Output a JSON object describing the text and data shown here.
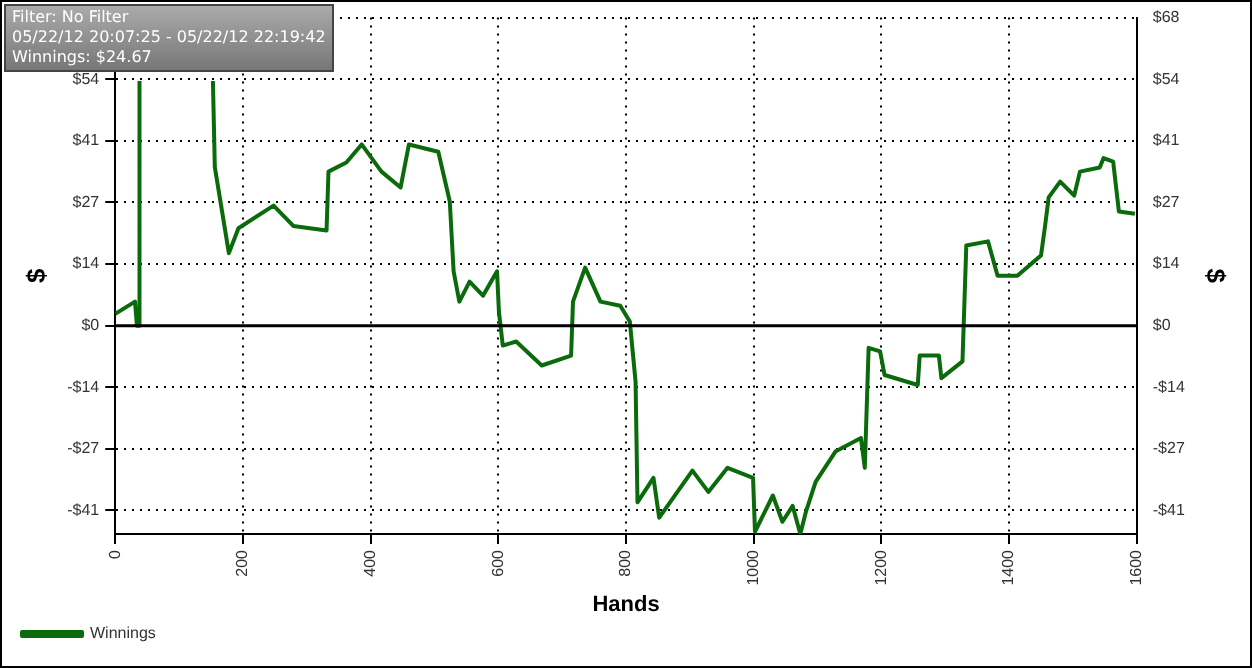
{
  "chart_data": {
    "type": "line",
    "xlabel": "Hands",
    "ylabel": "$",
    "y2label": "$",
    "annotations": [
      "Filter: No Filter",
      "05/22/12 20:07:25 - 05/22/12 22:19:42",
      "Winnings: $24.67"
    ],
    "x": [
      0,
      31,
      34,
      37,
      38,
      60,
      92,
      110,
      130,
      147,
      153,
      156,
      178,
      193,
      248,
      279,
      331,
      334,
      362,
      386,
      417,
      447,
      460,
      506,
      524,
      530,
      539,
      555,
      576,
      598,
      601,
      607,
      628,
      668,
      714,
      717,
      736,
      760,
      791,
      806,
      815,
      818,
      843,
      852,
      904,
      929,
      959,
      999,
      1002,
      1030,
      1045,
      1061,
      1073,
      1082,
      1097,
      1128,
      1168,
      1174,
      1180,
      1198,
      1205,
      1257,
      1260,
      1290,
      1294,
      1327,
      1333,
      1367,
      1382,
      1413,
      1450,
      1456,
      1462,
      1480,
      1502,
      1511,
      1542,
      1548,
      1563,
      1572,
      1597
    ],
    "series": [
      {
        "name": "Winnings",
        "color": "#0b6a0b",
        "values": [
          2.6,
          5.3,
          0,
          0,
          54,
          null,
          null,
          null,
          null,
          null,
          54,
          35,
          16,
          21.5,
          26.5,
          22,
          21,
          34,
          36,
          40,
          34,
          30.5,
          40,
          38.4,
          27.4,
          12,
          5.3,
          9.7,
          6.6,
          12,
          3,
          -4.4,
          -3.5,
          -8.8,
          -6.6,
          5.3,
          12.8,
          5.3,
          4.4,
          0.9,
          -12.4,
          -39,
          -33.6,
          -42.4,
          -32,
          -36.7,
          -31.4,
          -33.6,
          -45.5,
          -37.5,
          -43.3,
          -39.8,
          -46,
          -41,
          -34.5,
          -27.8,
          -24.8,
          -31.4,
          -4.9,
          -5.7,
          -10.9,
          -13.1,
          -6.6,
          -6.6,
          -11.6,
          -7.9,
          17.7,
          18.6,
          11,
          11,
          15.5,
          21.6,
          28.3,
          31.8,
          28.7,
          34,
          34.9,
          37,
          36.2,
          25.2,
          24.7
        ]
      }
    ],
    "xlim": [
      0,
      1600
    ],
    "xticks": [
      0,
      200,
      400,
      600,
      800,
      1000,
      1200,
      1400,
      1600
    ],
    "ylim": [
      -46,
      68
    ],
    "yticks": [
      {
        "value": -40.8,
        "label": "-$41"
      },
      {
        "value": -27.2,
        "label": "-$27"
      },
      {
        "value": -13.6,
        "label": "-$14"
      },
      {
        "value": 0,
        "label": "$0"
      },
      {
        "value": 13.6,
        "label": "$14"
      },
      {
        "value": 27.2,
        "label": "$27"
      },
      {
        "value": 40.8,
        "label": "$41"
      },
      {
        "value": 54.4,
        "label": "$54"
      },
      {
        "value": 68,
        "label": null
      }
    ],
    "y2lim": [
      -46,
      68
    ],
    "y2ticks": [
      {
        "value": -40.8,
        "label": "-$41"
      },
      {
        "value": -27.2,
        "label": "-$27"
      },
      {
        "value": -13.6,
        "label": "-$14"
      },
      {
        "value": 0,
        "label": "$0"
      },
      {
        "value": 13.6,
        "label": "$14"
      },
      {
        "value": 27.2,
        "label": "$27"
      },
      {
        "value": 40.8,
        "label": "$41"
      },
      {
        "value": 54.4,
        "label": "$54"
      },
      {
        "value": 68,
        "label": "$68"
      }
    ],
    "ref_lines": [
      {
        "axis": "y",
        "value": 0,
        "color": "#000000"
      }
    ],
    "grid": true,
    "legend": "bottom left",
    "marker": "none",
    "line_style": "solid"
  }
}
